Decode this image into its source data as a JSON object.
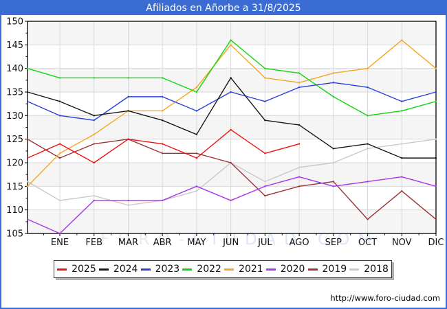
{
  "window": {
    "title": "Afiliados en Añorbe a 31/8/2025"
  },
  "theme": {
    "titlebar_bg": "#3b6cd3",
    "border": "#3b6cd3",
    "title_text": "#ffffff",
    "plot_band": "#f5f5f5",
    "grid": "#d9d9d9",
    "axis": "#000000",
    "label": "#111111"
  },
  "watermark": {
    "part1": "FORO-",
    "part2": "CIUDAD.COM",
    "color1": "#ebebeb",
    "color2": "#dde5f8"
  },
  "footer": {
    "url": "http://www.foro-ciudad.com"
  },
  "chart_data": {
    "type": "line",
    "title": "Afiliados en Añorbe a 31/8/2025",
    "xlabel": "",
    "ylabel": "",
    "categories": [
      "ENE",
      "FEB",
      "MAR",
      "ABR",
      "MAY",
      "JUN",
      "JUL",
      "AGO",
      "SEP",
      "OCT",
      "NOV",
      "DIC"
    ],
    "ylim": [
      105,
      150
    ],
    "yticks": [
      105,
      110,
      115,
      120,
      125,
      130,
      135,
      140,
      145,
      150
    ],
    "grid": true,
    "legend_position": "bottom",
    "x_layout": "first point of each series sits on the y-axis before ENE; remaining points at month gridlines; 2025 ends in AGO",
    "series": [
      {
        "name": "2025",
        "color": "#ee1111",
        "start": 121,
        "values": [
          124,
          120,
          125,
          124,
          121,
          127,
          122,
          124
        ]
      },
      {
        "name": "2024",
        "color": "#171717",
        "start": 135,
        "values": [
          133,
          130,
          131,
          129,
          126,
          138,
          129,
          128,
          123,
          124,
          121,
          121
        ]
      },
      {
        "name": "2023",
        "color": "#2740d9",
        "start": 133,
        "values": [
          130,
          129,
          134,
          134,
          131,
          135,
          133,
          136,
          137,
          136,
          133,
          135
        ]
      },
      {
        "name": "2022",
        "color": "#0fd60f",
        "start": 140,
        "values": [
          138,
          138,
          138,
          138,
          135,
          146,
          140,
          139,
          134,
          130,
          131,
          133
        ]
      },
      {
        "name": "2021",
        "color": "#f7a521",
        "start": 115,
        "values": [
          122,
          126,
          131,
          131,
          136,
          145,
          138,
          137,
          139,
          140,
          146,
          140
        ]
      },
      {
        "name": "2020",
        "color": "#a835e8",
        "start": 108,
        "values": [
          105,
          112,
          112,
          112,
          115,
          112,
          115,
          117,
          115,
          116,
          117,
          115
        ]
      },
      {
        "name": "2019",
        "color": "#9b3434",
        "start": 125,
        "values": [
          121,
          124,
          125,
          122,
          122,
          120,
          113,
          115,
          116,
          108,
          114,
          108
        ]
      },
      {
        "name": "2018",
        "color": "#c9c9c9",
        "start": 116,
        "values": [
          112,
          113,
          111,
          112,
          114,
          120,
          116,
          119,
          120,
          123,
          124,
          125
        ]
      }
    ]
  }
}
